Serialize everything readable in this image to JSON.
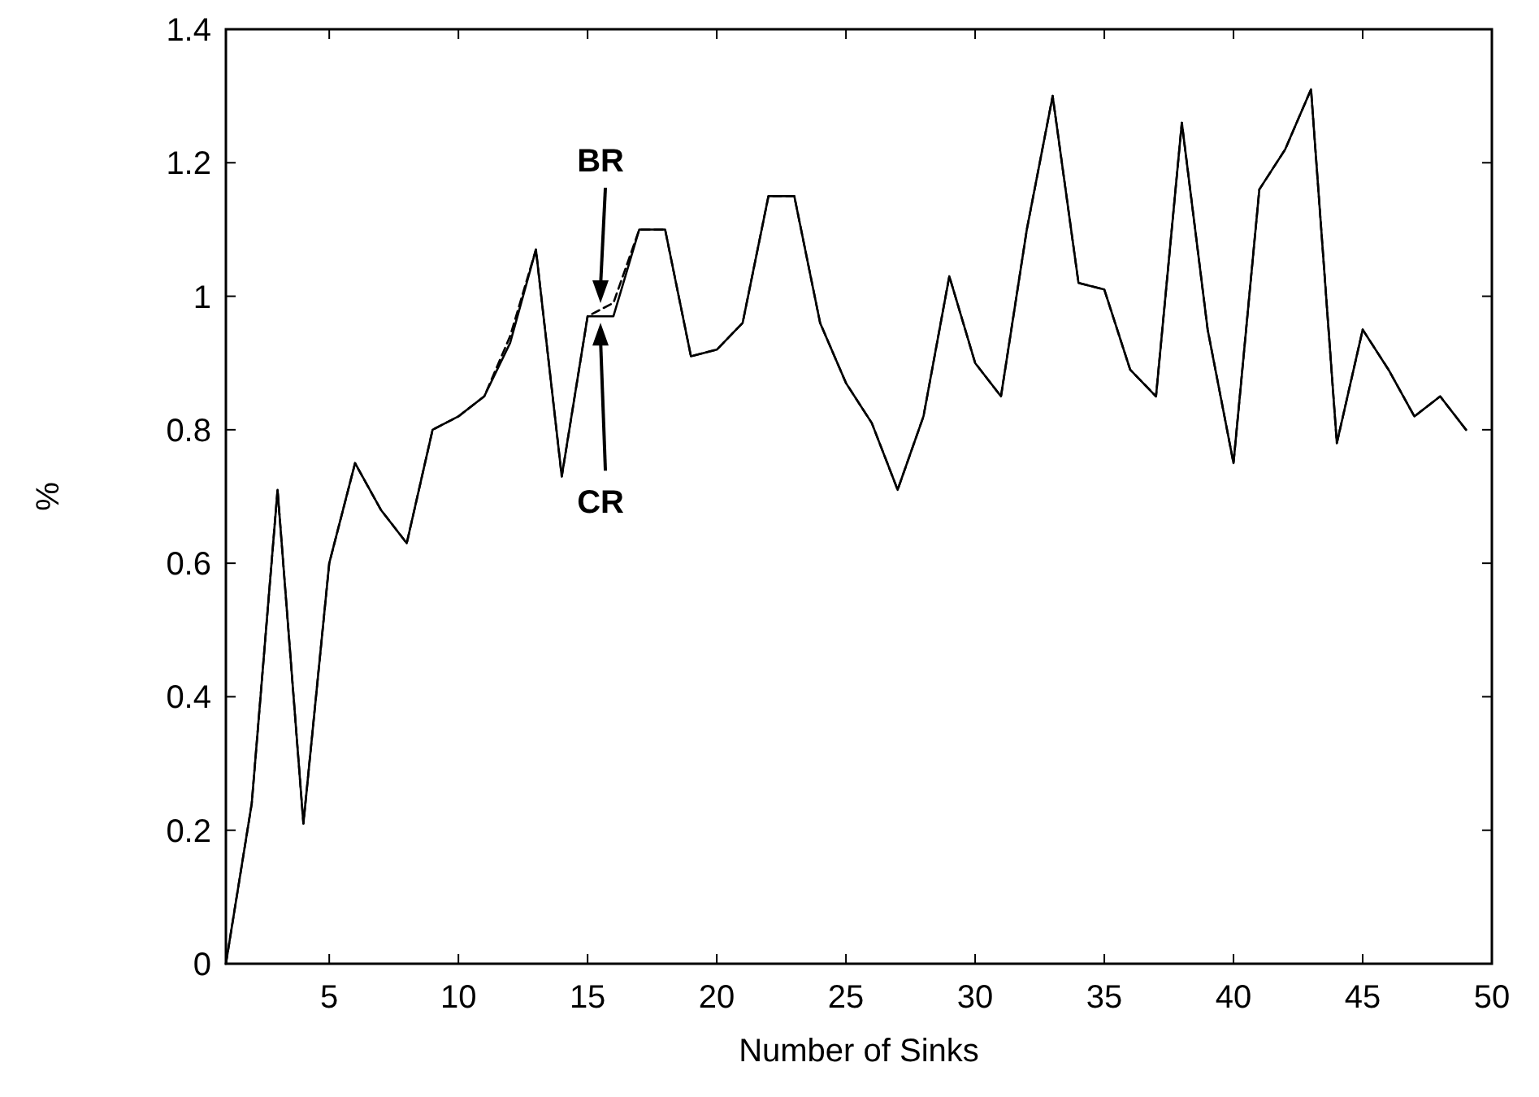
{
  "chart_data": {
    "type": "line",
    "xlabel": "Number of Sinks",
    "ylabel": "%",
    "x": [
      1,
      2,
      3,
      4,
      5,
      6,
      7,
      8,
      9,
      10,
      11,
      12,
      13,
      14,
      15,
      16,
      17,
      18,
      19,
      20,
      21,
      22,
      23,
      24,
      25,
      26,
      27,
      28,
      29,
      30,
      31,
      32,
      33,
      34,
      35,
      36,
      37,
      38,
      39,
      40,
      41,
      42,
      43,
      44,
      45,
      46,
      47,
      48,
      49
    ],
    "series": [
      {
        "name": "CR",
        "color": "#000000",
        "line_style": "solid",
        "values": [
          0,
          0.24,
          0.71,
          0.21,
          0.6,
          0.75,
          0.68,
          0.63,
          0.8,
          0.82,
          0.85,
          0.93,
          1.07,
          0.73,
          0.97,
          0.97,
          1.1,
          1.1,
          0.91,
          0.92,
          0.96,
          1.15,
          1.15,
          0.96,
          0.87,
          0.81,
          0.71,
          0.82,
          1.03,
          0.9,
          0.85,
          1.1,
          1.3,
          1.02,
          1.01,
          0.89,
          0.85,
          1.26,
          0.95,
          0.75,
          1.16,
          1.22,
          1.31,
          0.78,
          0.95,
          0.89,
          0.82,
          0.85,
          0.8
        ]
      },
      {
        "name": "BR",
        "color": "#000000",
        "line_style": "dashed",
        "values": [
          0,
          0.24,
          0.71,
          0.21,
          0.6,
          0.75,
          0.68,
          0.63,
          0.8,
          0.82,
          0.85,
          0.94,
          1.07,
          0.73,
          0.97,
          0.99,
          1.1,
          1.1,
          0.91,
          0.92,
          0.96,
          1.15,
          1.15,
          0.96,
          0.87,
          0.81,
          0.71,
          0.82,
          1.03,
          0.9,
          0.85,
          1.1,
          1.3,
          1.02,
          1.01,
          0.89,
          0.85,
          1.26,
          0.95,
          0.75,
          1.16,
          1.22,
          1.31,
          0.78,
          0.95,
          0.89,
          0.82,
          0.85,
          0.8
        ]
      }
    ],
    "xlim": [
      1,
      50
    ],
    "xticks": [
      5,
      10,
      15,
      20,
      25,
      30,
      35,
      40,
      45,
      50
    ],
    "ylim": [
      0,
      1.4
    ],
    "yticks": [
      0,
      0.2,
      0.4,
      0.6,
      0.8,
      1,
      1.2,
      1.4
    ],
    "grid": false,
    "marker": "none"
  }
}
